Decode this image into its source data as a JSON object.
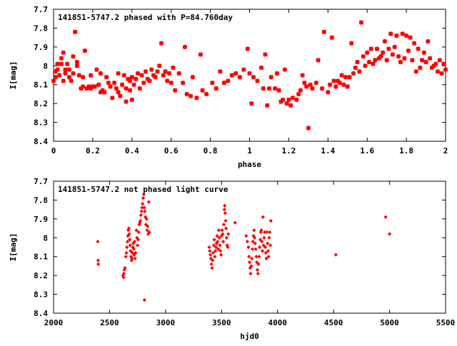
{
  "chart_data": [
    {
      "type": "scatter",
      "title": "141851-5747.2 phased with P=84.760day",
      "xlabel": "phase",
      "ylabel": "I[mag]",
      "xlim": [
        0,
        2
      ],
      "ylim": [
        7.7,
        8.4
      ],
      "y_inverted": true,
      "grid": false,
      "marker_color": "#ff0000",
      "marker": "star",
      "xticks": [
        0,
        0.2,
        0.4,
        0.6,
        0.8,
        1,
        1.2,
        1.4,
        1.6,
        1.8,
        2
      ],
      "xtick_labels": [
        "0",
        "0.2",
        "0.4",
        "0.6",
        "0.8",
        "1",
        "1.2",
        "1.4",
        "1.6",
        "1.8",
        "2"
      ],
      "yticks": [
        7.7,
        7.8,
        7.9,
        8.0,
        8.1,
        8.2,
        8.3,
        8.4
      ],
      "ytick_labels": [
        "7.7",
        "7.8",
        "7.9",
        "8",
        "8.1",
        "8.2",
        "8.3",
        "8.4"
      ],
      "points": [
        [
          0.0,
          8.08
        ],
        [
          0.01,
          8.03
        ],
        [
          0.01,
          8.06
        ],
        [
          0.02,
          7.99
        ],
        [
          0.02,
          8.02
        ],
        [
          0.03,
          8.05
        ],
        [
          0.04,
          7.96
        ],
        [
          0.04,
          7.99
        ],
        [
          0.05,
          7.93
        ],
        [
          0.05,
          8.08
        ],
        [
          0.06,
          8.02
        ],
        [
          0.06,
          8.04
        ],
        [
          0.07,
          7.99
        ],
        [
          0.08,
          8.06
        ],
        [
          0.08,
          8.02
        ],
        [
          0.09,
          8.08
        ],
        [
          0.1,
          7.95
        ],
        [
          0.1,
          8.04
        ],
        [
          0.11,
          7.82
        ],
        [
          0.12,
          7.98
        ],
        [
          0.12,
          8.0
        ],
        [
          0.13,
          8.05
        ],
        [
          0.14,
          8.12
        ],
        [
          0.15,
          8.06
        ],
        [
          0.15,
          8.11
        ],
        [
          0.16,
          7.92
        ],
        [
          0.17,
          8.12
        ],
        [
          0.18,
          8.11
        ],
        [
          0.19,
          8.12
        ],
        [
          0.19,
          8.05
        ],
        [
          0.2,
          8.11
        ],
        [
          0.21,
          8.11
        ],
        [
          0.22,
          8.02
        ],
        [
          0.23,
          8.1
        ],
        [
          0.24,
          8.04
        ],
        [
          0.24,
          8.14
        ],
        [
          0.25,
          8.13
        ],
        [
          0.26,
          8.14
        ],
        [
          0.27,
          8.06
        ],
        [
          0.28,
          8.09
        ],
        [
          0.29,
          8.11
        ],
        [
          0.3,
          8.17
        ],
        [
          0.31,
          8.09
        ],
        [
          0.32,
          8.12
        ],
        [
          0.33,
          8.04
        ],
        [
          0.33,
          8.14
        ],
        [
          0.34,
          8.16
        ],
        [
          0.35,
          8.1
        ],
        [
          0.36,
          8.05
        ],
        [
          0.37,
          8.12
        ],
        [
          0.37,
          8.19
        ],
        [
          0.38,
          8.07
        ],
        [
          0.39,
          8.08
        ],
        [
          0.39,
          8.13
        ],
        [
          0.4,
          8.06
        ],
        [
          0.4,
          8.18
        ],
        [
          0.41,
          8.1
        ],
        [
          0.42,
          8.07
        ],
        [
          0.43,
          8.04
        ],
        [
          0.44,
          8.12
        ],
        [
          0.45,
          8.05
        ],
        [
          0.46,
          8.09
        ],
        [
          0.47,
          8.03
        ],
        [
          0.48,
          8.07
        ],
        [
          0.49,
          8.08
        ],
        [
          0.5,
          8.02
        ],
        [
          0.51,
          8.05
        ],
        [
          0.52,
          8.06
        ],
        [
          0.53,
          8.03
        ],
        [
          0.54,
          8.0
        ],
        [
          0.55,
          7.88
        ],
        [
          0.56,
          8.05
        ],
        [
          0.57,
          8.03
        ],
        [
          0.58,
          8.08
        ],
        [
          0.59,
          8.04
        ],
        [
          0.6,
          8.09
        ],
        [
          0.61,
          8.01
        ],
        [
          0.62,
          8.13
        ],
        [
          0.64,
          8.04
        ],
        [
          0.66,
          8.09
        ],
        [
          0.67,
          7.9
        ],
        [
          0.68,
          8.15
        ],
        [
          0.7,
          8.16
        ],
        [
          0.71,
          8.06
        ],
        [
          0.73,
          8.17
        ],
        [
          0.75,
          7.94
        ],
        [
          0.76,
          8.13
        ],
        [
          0.78,
          8.15
        ],
        [
          0.81,
          8.09
        ],
        [
          0.83,
          8.12
        ],
        [
          0.85,
          8.03
        ],
        [
          0.87,
          8.09
        ],
        [
          0.89,
          8.08
        ],
        [
          0.91,
          8.05
        ],
        [
          0.93,
          8.04
        ],
        [
          0.95,
          8.06
        ],
        [
          0.97,
          8.02
        ],
        [
          0.99,
          7.91
        ],
        [
          1.0,
          8.04
        ],
        [
          1.01,
          8.2
        ],
        [
          1.02,
          8.06
        ],
        [
          1.04,
          8.08
        ],
        [
          1.06,
          8.01
        ],
        [
          1.07,
          8.12
        ],
        [
          1.08,
          7.94
        ],
        [
          1.09,
          8.21
        ],
        [
          1.1,
          8.12
        ],
        [
          1.11,
          8.06
        ],
        [
          1.13,
          8.12
        ],
        [
          1.14,
          8.04
        ],
        [
          1.15,
          8.13
        ],
        [
          1.16,
          8.19
        ],
        [
          1.17,
          8.18
        ],
        [
          1.18,
          8.02
        ],
        [
          1.19,
          8.2
        ],
        [
          1.2,
          8.18
        ],
        [
          1.21,
          8.21
        ],
        [
          1.22,
          8.17
        ],
        [
          1.24,
          8.18
        ],
        [
          1.25,
          8.15
        ],
        [
          1.26,
          8.13
        ],
        [
          1.27,
          8.05
        ],
        [
          1.28,
          8.09
        ],
        [
          1.29,
          8.11
        ],
        [
          1.3,
          8.33
        ],
        [
          1.31,
          8.1
        ],
        [
          1.32,
          8.12
        ],
        [
          1.34,
          8.09
        ],
        [
          1.35,
          7.97
        ],
        [
          1.37,
          8.12
        ],
        [
          1.38,
          7.82
        ],
        [
          1.4,
          8.14
        ],
        [
          1.41,
          8.1
        ],
        [
          1.42,
          7.85
        ],
        [
          1.43,
          8.08
        ],
        [
          1.44,
          8.11
        ],
        [
          1.45,
          8.08
        ],
        [
          1.46,
          8.09
        ],
        [
          1.47,
          8.05
        ],
        [
          1.48,
          8.1
        ],
        [
          1.49,
          8.06
        ],
        [
          1.5,
          8.11
        ],
        [
          1.51,
          8.06
        ],
        [
          1.52,
          7.88
        ],
        [
          1.53,
          8.04
        ],
        [
          1.54,
          8.01
        ],
        [
          1.55,
          7.98
        ],
        [
          1.56,
          8.03
        ],
        [
          1.57,
          7.77
        ],
        [
          1.58,
          7.95
        ],
        [
          1.59,
          8.0
        ],
        [
          1.6,
          7.93
        ],
        [
          1.61,
          7.98
        ],
        [
          1.62,
          7.91
        ],
        [
          1.63,
          7.99
        ],
        [
          1.64,
          7.97
        ],
        [
          1.65,
          7.91
        ],
        [
          1.66,
          7.96
        ],
        [
          1.67,
          7.95
        ],
        [
          1.68,
          7.93
        ],
        [
          1.69,
          7.87
        ],
        [
          1.7,
          7.97
        ],
        [
          1.71,
          7.91
        ],
        [
          1.72,
          7.83
        ],
        [
          1.73,
          7.94
        ],
        [
          1.74,
          7.9
        ],
        [
          1.75,
          7.84
        ],
        [
          1.76,
          7.95
        ],
        [
          1.77,
          7.98
        ],
        [
          1.78,
          7.83
        ],
        [
          1.79,
          7.96
        ],
        [
          1.8,
          7.84
        ],
        [
          1.81,
          7.92
        ],
        [
          1.82,
          7.85
        ],
        [
          1.83,
          7.97
        ],
        [
          1.84,
          7.88
        ],
        [
          1.85,
          8.03
        ],
        [
          1.86,
          7.91
        ],
        [
          1.87,
          8.01
        ],
        [
          1.88,
          7.97
        ],
        [
          1.89,
          7.93
        ],
        [
          1.9,
          7.98
        ],
        [
          1.91,
          7.87
        ],
        [
          1.92,
          7.96
        ],
        [
          1.93,
          8.01
        ],
        [
          1.94,
          8.0
        ],
        [
          1.95,
          7.99
        ],
        [
          1.96,
          8.03
        ],
        [
          1.97,
          7.97
        ],
        [
          1.98,
          8.04
        ],
        [
          1.99,
          7.99
        ],
        [
          2.0,
          8.02
        ]
      ]
    },
    {
      "type": "scatter",
      "title": "141851-5747.2 not phased light curve",
      "xlabel": "hjd0",
      "ylabel": "I[mag]",
      "xlim": [
        2000,
        5500
      ],
      "ylim": [
        7.7,
        8.4
      ],
      "y_inverted": true,
      "grid": false,
      "marker_color": "#ff0000",
      "marker": "diamond",
      "xticks": [
        2000,
        2500,
        3000,
        3500,
        4000,
        4500,
        5000,
        5500
      ],
      "xtick_labels": [
        "2000",
        "2500",
        "3000",
        "3500",
        "4000",
        "4500",
        "5000",
        "5500"
      ],
      "yticks": [
        7.7,
        7.8,
        7.9,
        8.0,
        8.1,
        8.2,
        8.3,
        8.4
      ],
      "ytick_labels": [
        "7.7",
        "7.8",
        "7.9",
        "8",
        "8.1",
        "8.2",
        "8.3",
        "8.4"
      ],
      "points": [
        [
          2395,
          8.02
        ],
        [
          2398,
          8.12
        ],
        [
          2400,
          8.14
        ],
        [
          2620,
          8.2
        ],
        [
          2625,
          8.21
        ],
        [
          2628,
          8.19
        ],
        [
          2632,
          8.17
        ],
        [
          2638,
          8.16
        ],
        [
          2645,
          8.1
        ],
        [
          2650,
          8.08
        ],
        [
          2655,
          8.05
        ],
        [
          2660,
          8.02
        ],
        [
          2664,
          7.99
        ],
        [
          2668,
          7.96
        ],
        [
          2672,
          7.95
        ],
        [
          2676,
          7.98
        ],
        [
          2680,
          8.01
        ],
        [
          2684,
          8.04
        ],
        [
          2688,
          8.07
        ],
        [
          2692,
          8.1
        ],
        [
          2696,
          8.12
        ],
        [
          2700,
          8.11
        ],
        [
          2704,
          8.08
        ],
        [
          2708,
          8.05
        ],
        [
          2712,
          8.03
        ],
        [
          2716,
          8.06
        ],
        [
          2720,
          8.09
        ],
        [
          2724,
          8.02
        ],
        [
          2728,
          8.11
        ],
        [
          2732,
          8.08
        ],
        [
          2740,
          7.96
        ],
        [
          2745,
          8.0
        ],
        [
          2750,
          8.04
        ],
        [
          2755,
          8.01
        ],
        [
          2760,
          7.97
        ],
        [
          2765,
          7.93
        ],
        [
          2770,
          7.92
        ],
        [
          2775,
          7.91
        ],
        [
          2780,
          7.88
        ],
        [
          2785,
          7.86
        ],
        [
          2790,
          7.84
        ],
        [
          2795,
          7.82
        ],
        [
          2800,
          7.79
        ],
        [
          2805,
          7.77
        ],
        [
          2810,
          7.84
        ],
        [
          2812,
          8.33
        ],
        [
          2815,
          7.86
        ],
        [
          2820,
          7.89
        ],
        [
          2825,
          7.93
        ],
        [
          2830,
          7.9
        ],
        [
          2835,
          7.96
        ],
        [
          2840,
          7.94
        ],
        [
          2845,
          7.98
        ],
        [
          2850,
          7.81
        ],
        [
          2855,
          7.97
        ],
        [
          3390,
          8.05
        ],
        [
          3395,
          8.07
        ],
        [
          3400,
          8.09
        ],
        [
          3405,
          8.11
        ],
        [
          3410,
          8.14
        ],
        [
          3415,
          8.16
        ],
        [
          3420,
          8.12
        ],
        [
          3425,
          8.08
        ],
        [
          3430,
          8.04
        ],
        [
          3435,
          8.01
        ],
        [
          3440,
          8.1
        ],
        [
          3445,
          8.07
        ],
        [
          3450,
          8.05
        ],
        [
          3455,
          8.03
        ],
        [
          3460,
          7.99
        ],
        [
          3465,
          8.02
        ],
        [
          3470,
          8.06
        ],
        [
          3475,
          7.96
        ],
        [
          3480,
          8.0
        ],
        [
          3485,
          8.04
        ],
        [
          3490,
          8.07
        ],
        [
          3495,
          8.09
        ],
        [
          3500,
          7.99
        ],
        [
          3505,
          7.96
        ],
        [
          3510,
          7.98
        ],
        [
          3515,
          8.02
        ],
        [
          3520,
          7.93
        ],
        [
          3525,
          7.85
        ],
        [
          3528,
          7.83
        ],
        [
          3532,
          7.87
        ],
        [
          3536,
          7.91
        ],
        [
          3540,
          7.95
        ],
        [
          3545,
          8.0
        ],
        [
          3550,
          8.04
        ],
        [
          3555,
          8.05
        ],
        [
          3560,
          7.98
        ],
        [
          3620,
          7.92
        ],
        [
          3720,
          7.99
        ],
        [
          3730,
          8.02
        ],
        [
          3740,
          8.05
        ],
        [
          3745,
          8.1
        ],
        [
          3750,
          8.13
        ],
        [
          3755,
          8.16
        ],
        [
          3760,
          8.19
        ],
        [
          3765,
          8.15
        ],
        [
          3770,
          8.11
        ],
        [
          3775,
          8.06
        ],
        [
          3780,
          8.02
        ],
        [
          3785,
          7.99
        ],
        [
          3790,
          7.96
        ],
        [
          3795,
          8.0
        ],
        [
          3800,
          8.03
        ],
        [
          3805,
          8.06
        ],
        [
          3810,
          8.1
        ],
        [
          3815,
          8.13
        ],
        [
          3820,
          8.17
        ],
        [
          3825,
          8.19
        ],
        [
          3830,
          8.14
        ],
        [
          3835,
          8.1
        ],
        [
          3840,
          8.05
        ],
        [
          3845,
          8.01
        ],
        [
          3850,
          7.97
        ],
        [
          3855,
          7.96
        ],
        [
          3860,
          8.02
        ],
        [
          3865,
          8.07
        ],
        [
          3870,
          7.89
        ],
        [
          3875,
          8.04
        ],
        [
          3880,
          8.0
        ],
        [
          3885,
          7.97
        ],
        [
          3890,
          8.05
        ],
        [
          3895,
          8.08
        ],
        [
          3900,
          8.11
        ],
        [
          3905,
          7.97
        ],
        [
          3910,
          8.03
        ],
        [
          3915,
          8.07
        ],
        [
          3920,
          8.1
        ],
        [
          3925,
          8.0
        ],
        [
          3930,
          7.97
        ],
        [
          3935,
          8.04
        ],
        [
          3940,
          7.91
        ],
        [
          4520,
          8.09
        ],
        [
          4965,
          7.89
        ],
        [
          5000,
          7.98
        ]
      ]
    }
  ]
}
